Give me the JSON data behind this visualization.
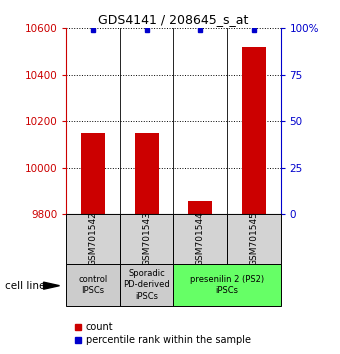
{
  "title": "GDS4141 / 208645_s_at",
  "samples": [
    "GSM701542",
    "GSM701543",
    "GSM701544",
    "GSM701545"
  ],
  "counts": [
    10148,
    10150,
    9855,
    10520
  ],
  "percentiles": [
    99,
    99,
    99,
    99
  ],
  "ylim_left": [
    9800,
    10600
  ],
  "ylim_right": [
    0,
    100
  ],
  "yticks_left": [
    9800,
    10000,
    10200,
    10400,
    10600
  ],
  "yticks_right": [
    0,
    25,
    50,
    75,
    100
  ],
  "ytick_labels_right": [
    "0",
    "25",
    "50",
    "75",
    "100%"
  ],
  "bar_color": "#cc0000",
  "percentile_color": "#0000cc",
  "legend_count_label": "count",
  "legend_percentile_label": "percentile rank within the sample",
  "bar_width": 0.45,
  "background_color": "#ffffff",
  "left_tick_color": "#cc0000",
  "right_tick_color": "#0000cc",
  "group_info": [
    [
      0,
      1,
      "#cccccc",
      "control\nIPSCs"
    ],
    [
      1,
      2,
      "#cccccc",
      "Sporadic\nPD-derived\niPSCs"
    ],
    [
      2,
      4,
      "#66ff66",
      "presenilin 2 (PS2)\niPSCs"
    ]
  ]
}
